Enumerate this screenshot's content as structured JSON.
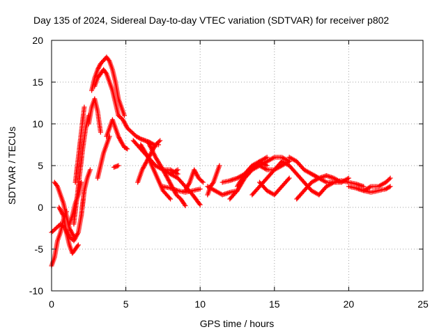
{
  "chart_data": {
    "type": "scatter",
    "title": "Day 135 of 2024, Sidereal Day-to-day VTEC variation (SDTVAR) for receiver p802",
    "xlabel": "GPS time / hours",
    "ylabel": "SDTVAR / TECUs",
    "xlim": [
      0,
      25
    ],
    "ylim": [
      -10,
      20
    ],
    "xticks": [
      0,
      5,
      10,
      15,
      20,
      25
    ],
    "yticks": [
      -10,
      -5,
      0,
      5,
      10,
      15,
      20
    ],
    "grid": true,
    "marker": "+",
    "color": "#ff0000",
    "tracks": [
      {
        "x": [
          0.0,
          0.2,
          0.4,
          0.6,
          0.8,
          1.0
        ],
        "y": [
          -7.0,
          -6.0,
          -4.0,
          -3.0,
          -1.5,
          -0.5
        ]
      },
      {
        "x": [
          0.0,
          0.3,
          0.6,
          0.9,
          1.2,
          1.5,
          1.8,
          2.0,
          2.2
        ],
        "y": [
          -3.0,
          -2.5,
          -2.0,
          -2.5,
          -3.5,
          -4.0,
          -3.0,
          -1.0,
          2.0
        ]
      },
      {
        "x": [
          0.2,
          0.4,
          0.6,
          0.8,
          1.0,
          1.2,
          1.5
        ],
        "y": [
          3.0,
          2.5,
          1.5,
          0.5,
          -1.0,
          -2.5,
          -3.5
        ]
      },
      {
        "x": [
          0.5,
          0.8,
          1.0,
          1.2,
          1.4,
          1.6,
          1.8
        ],
        "y": [
          0.0,
          -1.0,
          -3.0,
          -4.5,
          -5.5,
          -5.0,
          -4.5
        ]
      },
      {
        "x": [
          1.2,
          1.4,
          1.6,
          1.8,
          2.0
        ],
        "y": [
          -2.0,
          -1.0,
          0.5,
          1.5,
          3.0
        ]
      },
      {
        "x": [
          1.5,
          1.7,
          1.9,
          2.1,
          2.3,
          2.5
        ],
        "y": [
          -2.0,
          1.0,
          4.0,
          7.0,
          9.5,
          11.0
        ]
      },
      {
        "x": [
          1.6,
          1.8,
          2.0,
          2.2
        ],
        "y": [
          3.0,
          6.0,
          9.0,
          12.0
        ]
      },
      {
        "x": [
          2.0,
          2.2,
          2.4,
          2.6
        ],
        "y": [
          -1.0,
          2.0,
          3.5,
          4.5
        ]
      },
      {
        "x": [
          2.5,
          2.7,
          2.9,
          3.1,
          3.3
        ],
        "y": [
          10.0,
          12.0,
          13.0,
          11.5,
          9.0
        ]
      },
      {
        "x": [
          2.7,
          2.9,
          3.1,
          3.3,
          3.5,
          3.7,
          3.9,
          4.1,
          4.3,
          4.5,
          4.7,
          4.9
        ],
        "y": [
          14.0,
          15.5,
          16.5,
          17.2,
          17.6,
          18.0,
          17.5,
          16.5,
          15.0,
          13.0,
          12.0,
          11.0
        ]
      },
      {
        "x": [
          2.9,
          3.1,
          3.3,
          3.5,
          3.7,
          3.9,
          4.1,
          4.3,
          4.5
        ],
        "y": [
          14.5,
          15.5,
          16.0,
          16.5,
          16.0,
          15.0,
          14.0,
          12.5,
          11.0
        ]
      },
      {
        "x": [
          3.1,
          3.3,
          3.5,
          3.7,
          3.9
        ],
        "y": [
          3.5,
          5.0,
          6.5,
          7.5,
          8.5
        ]
      },
      {
        "x": [
          3.7,
          3.9,
          4.1,
          4.3,
          4.5,
          4.7,
          4.9,
          5.1
        ],
        "y": [
          8.5,
          9.5,
          10.5,
          9.5,
          8.5,
          7.8,
          7.2,
          7.0
        ]
      },
      {
        "x": [
          4.2,
          4.5
        ],
        "y": [
          4.8,
          5.0
        ]
      },
      {
        "x": [
          4.5,
          4.8,
          5.1,
          5.4,
          5.7,
          6.0,
          6.3,
          6.6,
          6.9,
          7.2
        ],
        "y": [
          11.0,
          10.5,
          9.5,
          9.0,
          8.5,
          8.2,
          8.0,
          7.8,
          7.5,
          7.5
        ]
      },
      {
        "x": [
          5.5,
          6.0,
          6.5,
          7.0,
          7.5,
          8.0,
          8.5
        ],
        "y": [
          8.0,
          7.0,
          6.0,
          5.0,
          4.5,
          4.5,
          4.0
        ]
      },
      {
        "x": [
          5.8,
          6.1,
          6.4,
          6.7,
          7.0,
          7.3
        ],
        "y": [
          3.0,
          4.5,
          5.5,
          6.5,
          7.5,
          8.0
        ]
      },
      {
        "x": [
          6.0,
          6.5,
          7.0,
          7.5,
          8.0
        ],
        "y": [
          7.5,
          6.0,
          4.0,
          2.0,
          1.0
        ]
      },
      {
        "x": [
          6.5,
          7.0,
          7.5,
          8.0,
          8.5
        ],
        "y": [
          7.8,
          6.0,
          4.5,
          4.0,
          4.5
        ]
      },
      {
        "x": [
          7.5,
          8.0,
          8.5,
          9.0,
          9.5,
          10.0
        ],
        "y": [
          2.5,
          2.3,
          2.0,
          1.8,
          2.0,
          2.2
        ]
      },
      {
        "x": [
          7.5,
          7.8,
          8.1,
          8.4,
          8.7,
          9.0
        ],
        "y": [
          4.5,
          3.5,
          2.5,
          1.5,
          1.0,
          0.2
        ]
      },
      {
        "x": [
          8.0,
          8.5,
          9.0,
          9.5,
          10.0
        ],
        "y": [
          4.0,
          3.5,
          2.5,
          1.5,
          0.3
        ]
      },
      {
        "x": [
          9.0,
          9.3,
          9.6,
          9.9,
          10.2
        ],
        "y": [
          2.0,
          3.0,
          4.5,
          3.5,
          3.0
        ]
      },
      {
        "x": [
          10.5,
          10.7,
          10.9,
          11.1,
          11.3
        ],
        "y": [
          1.5,
          2.5,
          3.0,
          4.0,
          5.0
        ]
      },
      {
        "x": [
          10.5,
          11.0,
          11.5,
          12.0,
          12.5
        ],
        "y": [
          2.5,
          2.0,
          1.5,
          1.8,
          2.0
        ]
      },
      {
        "x": [
          11.5,
          12.0,
          12.5,
          13.0,
          13.5,
          14.0,
          14.5,
          15.0,
          15.5,
          16.0
        ],
        "y": [
          3.0,
          3.2,
          3.5,
          4.0,
          4.5,
          5.0,
          5.5,
          6.0,
          6.0,
          5.5
        ]
      },
      {
        "x": [
          12.0,
          12.5,
          13.0,
          13.5,
          14.0,
          14.5
        ],
        "y": [
          1.0,
          2.0,
          3.5,
          4.5,
          5.5,
          6.0
        ]
      },
      {
        "x": [
          12.5,
          13.0,
          13.5,
          14.0,
          14.5
        ],
        "y": [
          2.5,
          4.0,
          5.0,
          5.5,
          5.0
        ]
      },
      {
        "x": [
          13.0,
          13.5,
          14.0,
          14.5,
          15.0,
          15.5,
          16.0
        ],
        "y": [
          4.0,
          5.0,
          5.0,
          4.5,
          4.5,
          5.0,
          5.5
        ]
      },
      {
        "x": [
          13.5,
          14.0,
          14.5,
          15.0,
          15.5
        ],
        "y": [
          1.5,
          2.5,
          3.5,
          4.5,
          5.5
        ]
      },
      {
        "x": [
          14.0,
          14.5,
          15.0,
          15.5,
          16.0
        ],
        "y": [
          3.0,
          2.0,
          1.5,
          2.5,
          3.5
        ]
      },
      {
        "x": [
          15.5,
          16.0,
          16.5,
          17.0,
          17.5,
          18.0
        ],
        "y": [
          5.5,
          5.0,
          4.0,
          3.0,
          2.0,
          1.5
        ]
      },
      {
        "x": [
          16.0,
          16.5,
          17.0,
          17.5,
          18.0
        ],
        "y": [
          6.0,
          5.5,
          4.5,
          4.0,
          3.5
        ]
      },
      {
        "x": [
          16.5,
          17.0,
          17.5,
          18.0,
          18.5,
          19.0,
          19.5
        ],
        "y": [
          1.0,
          2.0,
          3.0,
          3.5,
          3.8,
          3.5,
          3.0
        ]
      },
      {
        "x": [
          17.5,
          18.0,
          18.5,
          19.0,
          19.5,
          20.0,
          20.5,
          21.0
        ],
        "y": [
          4.0,
          3.5,
          3.0,
          3.0,
          3.2,
          3.0,
          2.8,
          2.5
        ]
      },
      {
        "x": [
          18.0,
          18.5,
          19.0,
          19.5,
          20.0
        ],
        "y": [
          1.5,
          2.5,
          3.0,
          3.0,
          3.5
        ]
      },
      {
        "x": [
          20.0,
          20.5,
          21.0,
          21.5,
          22.0,
          22.5,
          22.8
        ],
        "y": [
          2.5,
          2.3,
          2.0,
          1.8,
          2.0,
          2.2,
          2.5
        ]
      },
      {
        "x": [
          21.0,
          21.5,
          22.0,
          22.5,
          22.8
        ],
        "y": [
          2.0,
          2.5,
          2.5,
          3.0,
          3.5
        ]
      }
    ]
  }
}
